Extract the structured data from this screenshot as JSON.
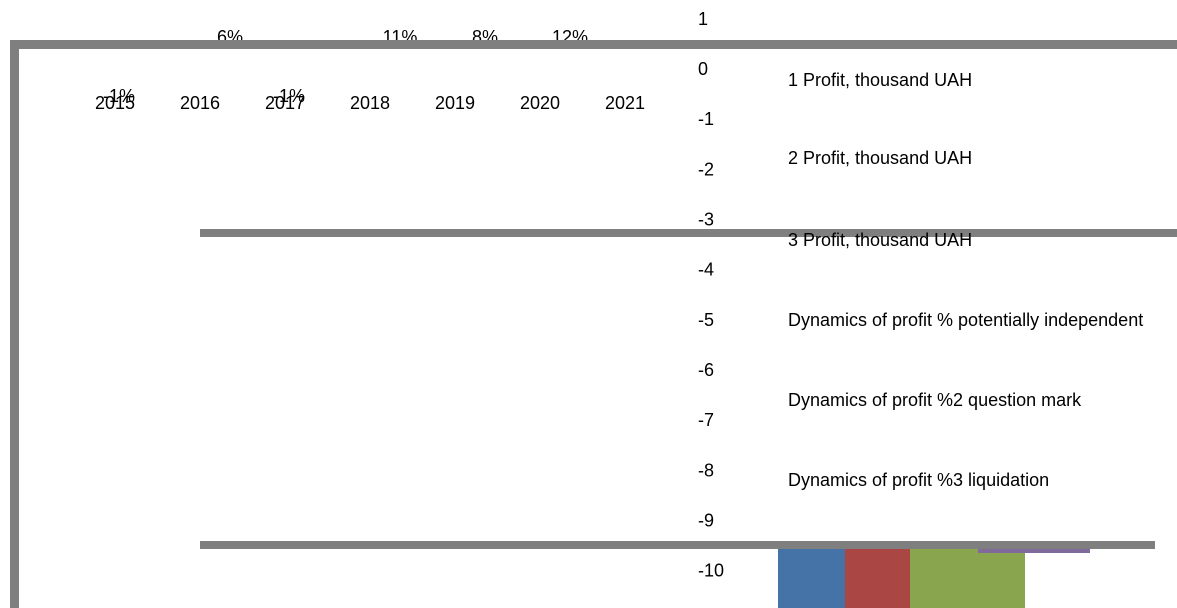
{
  "chart_data": {
    "type": "bar",
    "categories": [
      "2015",
      "2016",
      "2017",
      "2018",
      "2019",
      "2020",
      "2021"
    ],
    "values": [
      -1,
      6,
      -1,
      11,
      8,
      12,
      null
    ],
    "value_labels": [
      "-1%",
      "6%",
      "-1%",
      "11%",
      "8%",
      "12%",
      null
    ],
    "ylim": [
      -10.72,
      1.4
    ],
    "yticks": [
      1,
      0,
      -1,
      -2,
      -3,
      -4,
      -5,
      -6,
      -7,
      -8,
      -9,
      -10
    ],
    "legend": [
      "1 Profit, thousand UAH",
      "2 Profit, thousand UAH",
      "3 Profit, thousand UAH",
      "Dynamics of profit % potentially independent",
      "Dynamics of profit %2 question mark",
      "Dynamics of profit %3 liquidation"
    ]
  }
}
